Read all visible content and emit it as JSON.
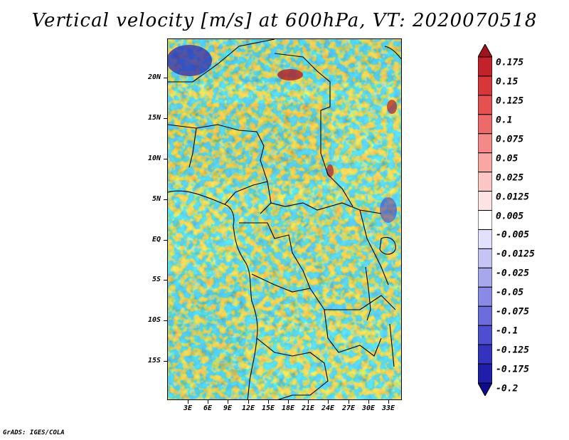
{
  "title": "Vertical velocity [m/s] at 600hPa, VT: 2020070518",
  "credit": "GrADS: IGES/COLA",
  "lat_labels": [
    "20N",
    "15N",
    "10N",
    "5N",
    "EQ",
    "5S",
    "10S",
    "15S"
  ],
  "lon_labels": [
    "3E",
    "6E",
    "9E",
    "12E",
    "15E",
    "18E",
    "21E",
    "24E",
    "27E",
    "30E",
    "33E"
  ],
  "colorbar": {
    "labels": [
      "0.175",
      "0.15",
      "0.125",
      "0.1",
      "0.075",
      "0.05",
      "0.025",
      "0.0125",
      "0.005",
      "-0.005",
      "-0.0125",
      "-0.025",
      "-0.05",
      "-0.075",
      "-0.1",
      "-0.125",
      "-0.175",
      "-0.2"
    ],
    "colors": [
      "#a0141e",
      "#c2232b",
      "#d7373b",
      "#e55050",
      "#ee6a6a",
      "#f48a88",
      "#f8a7a5",
      "#fbc6c4",
      "#fde3e2",
      "#ffffff",
      "#e1e1fb",
      "#c4c4f5",
      "#a7a7ee",
      "#8a8ae6",
      "#6c6cdc",
      "#4e4ed0",
      "#3333c0",
      "#1e1eaa",
      "#0c0c8c"
    ]
  },
  "colors": {
    "ocean_wash": "#e6e6f7",
    "coastline": "#000000"
  }
}
